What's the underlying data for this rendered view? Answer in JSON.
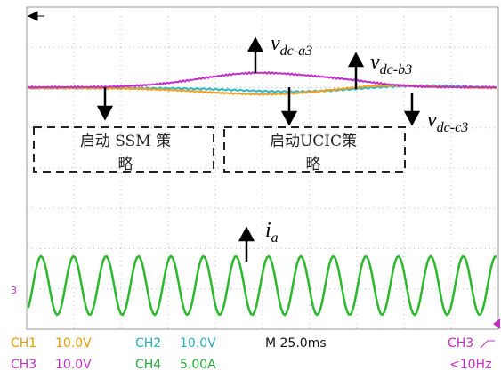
{
  "annotations": {
    "vdc_a3": {
      "main": "v",
      "sub": "dc-a3"
    },
    "vdc_b3": {
      "main": "v",
      "sub": "dc-b3"
    },
    "vdc_c3": {
      "main": "v",
      "sub": "dc-c3"
    },
    "ia": {
      "main": "i",
      "sub": "a"
    }
  },
  "boxes": [
    {
      "lines": [
        "启动 SSM 策",
        "略"
      ]
    },
    {
      "lines": [
        "启动UCIC策",
        "略"
      ]
    }
  ],
  "marker": "3",
  "status": {
    "ch1": {
      "name": "CH1",
      "scale": "10.0V"
    },
    "ch2": {
      "name": "CH2",
      "scale": "10.0V"
    },
    "ch3": {
      "name": "CH3",
      "scale": "10.0V"
    },
    "ch4": {
      "name": "CH4",
      "scale": "5.00A"
    },
    "timebase": "M 25.0ms",
    "trigger": {
      "source": "CH3",
      "level": "<10Hz"
    }
  }
}
